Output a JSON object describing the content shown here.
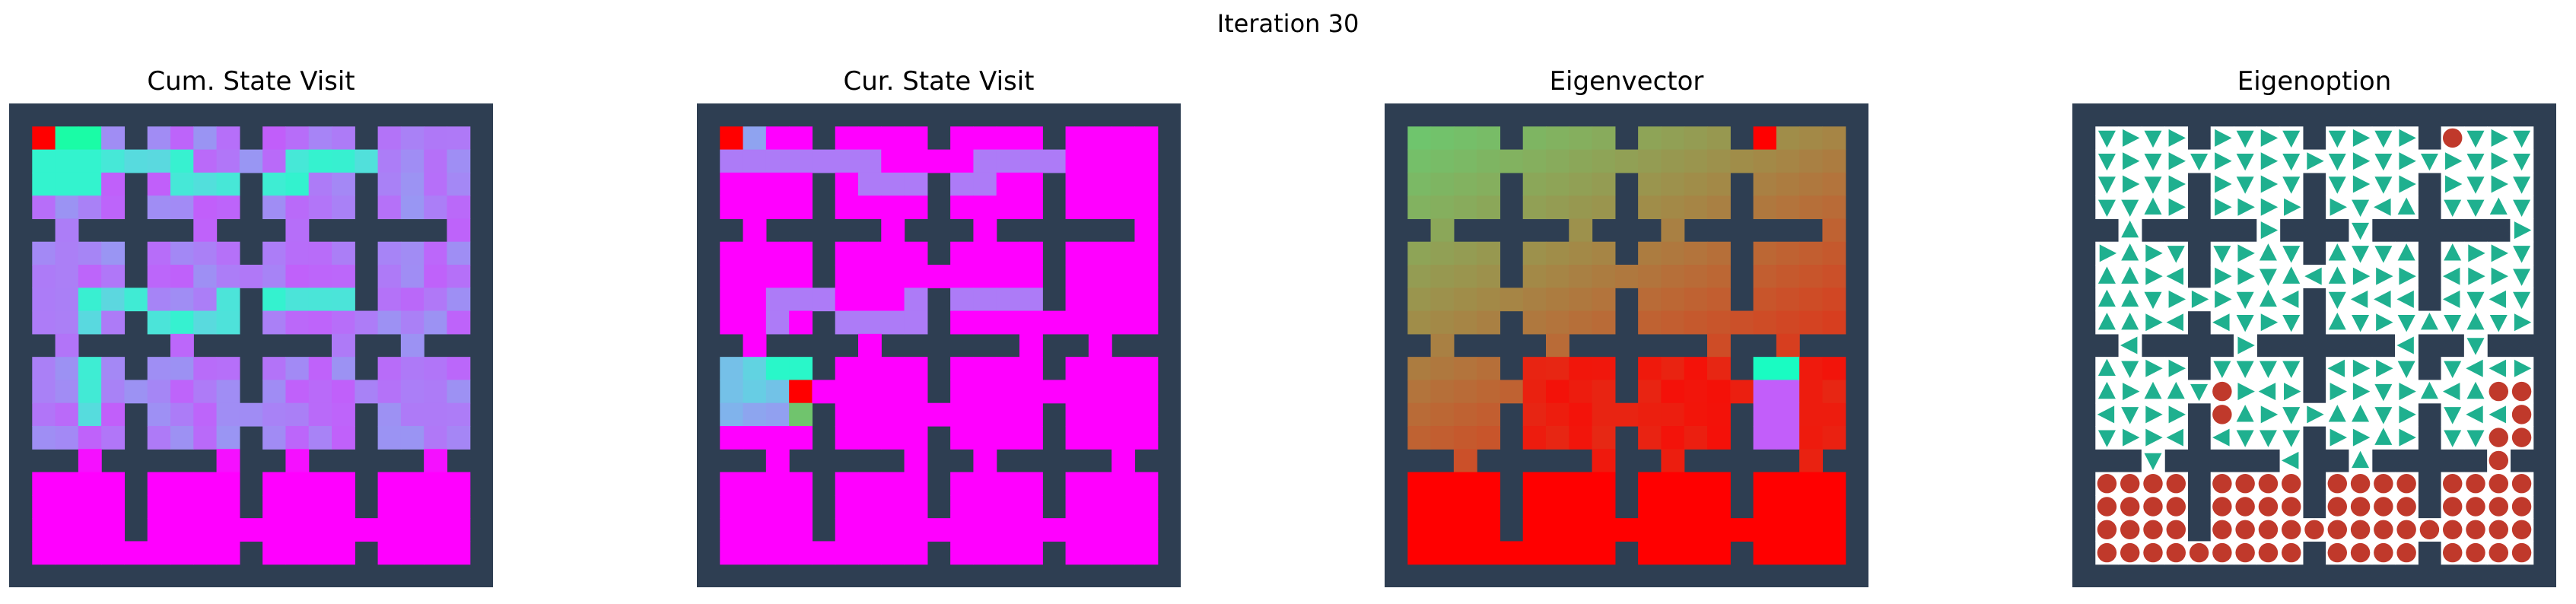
{
  "figure": {
    "suptitle": "Iteration 30"
  },
  "colors": {
    "wall": "#2e3e52",
    "background": "#ffffff",
    "arrow": "#1fb08f",
    "terminal_marker": "#c0392b",
    "peak": "#ff0000"
  },
  "chart_data": [
    {
      "type": "heatmap",
      "title": "Cum. State Visit",
      "colormap": "rainbow",
      "grid_size": 21,
      "wall_value": null
    },
    {
      "type": "heatmap",
      "title": "Cur. State Visit",
      "colormap": "rainbow",
      "grid_size": 21,
      "wall_value": null
    },
    {
      "type": "heatmap",
      "title": "Eigenvector",
      "colormap": "rainbow",
      "grid_size": 21,
      "wall_value": null
    },
    {
      "type": "heatmap",
      "title": "Eigenoption",
      "colormap": "quiver",
      "grid_size": 21,
      "glyphs": [
        "triangle",
        "circle"
      ]
    }
  ]
}
